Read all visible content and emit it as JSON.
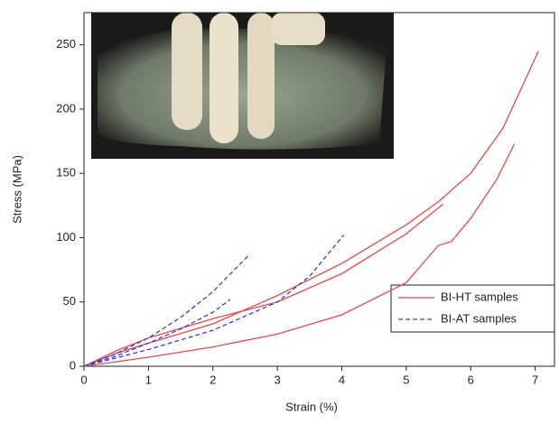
{
  "chart_data": {
    "type": "line",
    "x_label": "Strain (%)",
    "y_label": "Stress (MPa)",
    "xlim": [
      0,
      7.3
    ],
    "ylim": [
      0,
      275
    ],
    "xticks": [
      0,
      1,
      2,
      3,
      4,
      5,
      6,
      7
    ],
    "yticks": [
      0,
      50,
      100,
      150,
      200,
      250
    ],
    "legend": "lower right",
    "series": [
      {
        "name": "BI-HT samples",
        "color": "#e8484a",
        "dash": "solid",
        "curves": [
          {
            "x": [
              0,
              0.5,
              1,
              2,
              3,
              4,
              5,
              5.5,
              6,
              6.5,
              7.05
            ],
            "values": [
              0,
              10,
              18,
              33,
              55,
              80,
              110,
              128,
              150,
              185,
              245
            ]
          },
          {
            "x": [
              0,
              0.5,
              1,
              2,
              3,
              4,
              5,
              5.57
            ],
            "values": [
              0,
              12,
              22,
              37,
              50,
              72,
              103,
              126
            ]
          },
          {
            "x": [
              0,
              1,
              2,
              3,
              4,
              5,
              5.5,
              5.7,
              6,
              6.4,
              6.68
            ],
            "values": [
              0,
              7,
              15,
              25,
              40,
              65,
              94,
              97,
              115,
              145,
              173
            ]
          }
        ]
      },
      {
        "name": "BI-AT samples",
        "color": "#3c3cdc",
        "dash": "dashed",
        "curves": [
          {
            "x": [
              0,
              0.5,
              1,
              1.5,
              2,
              2.55
            ],
            "values": [
              0,
              10,
              22,
              38,
              58,
              86
            ]
          },
          {
            "x": [
              0,
              0.5,
              1,
              1.5,
              2,
              2.27
            ],
            "values": [
              0,
              8,
              18,
              29,
              42,
              52
            ]
          },
          {
            "x": [
              0,
              1,
              2,
              3,
              3.5,
              4.03
            ],
            "values": [
              0,
              13,
              28,
              50,
              70,
              102
            ]
          }
        ]
      }
    ]
  }
}
